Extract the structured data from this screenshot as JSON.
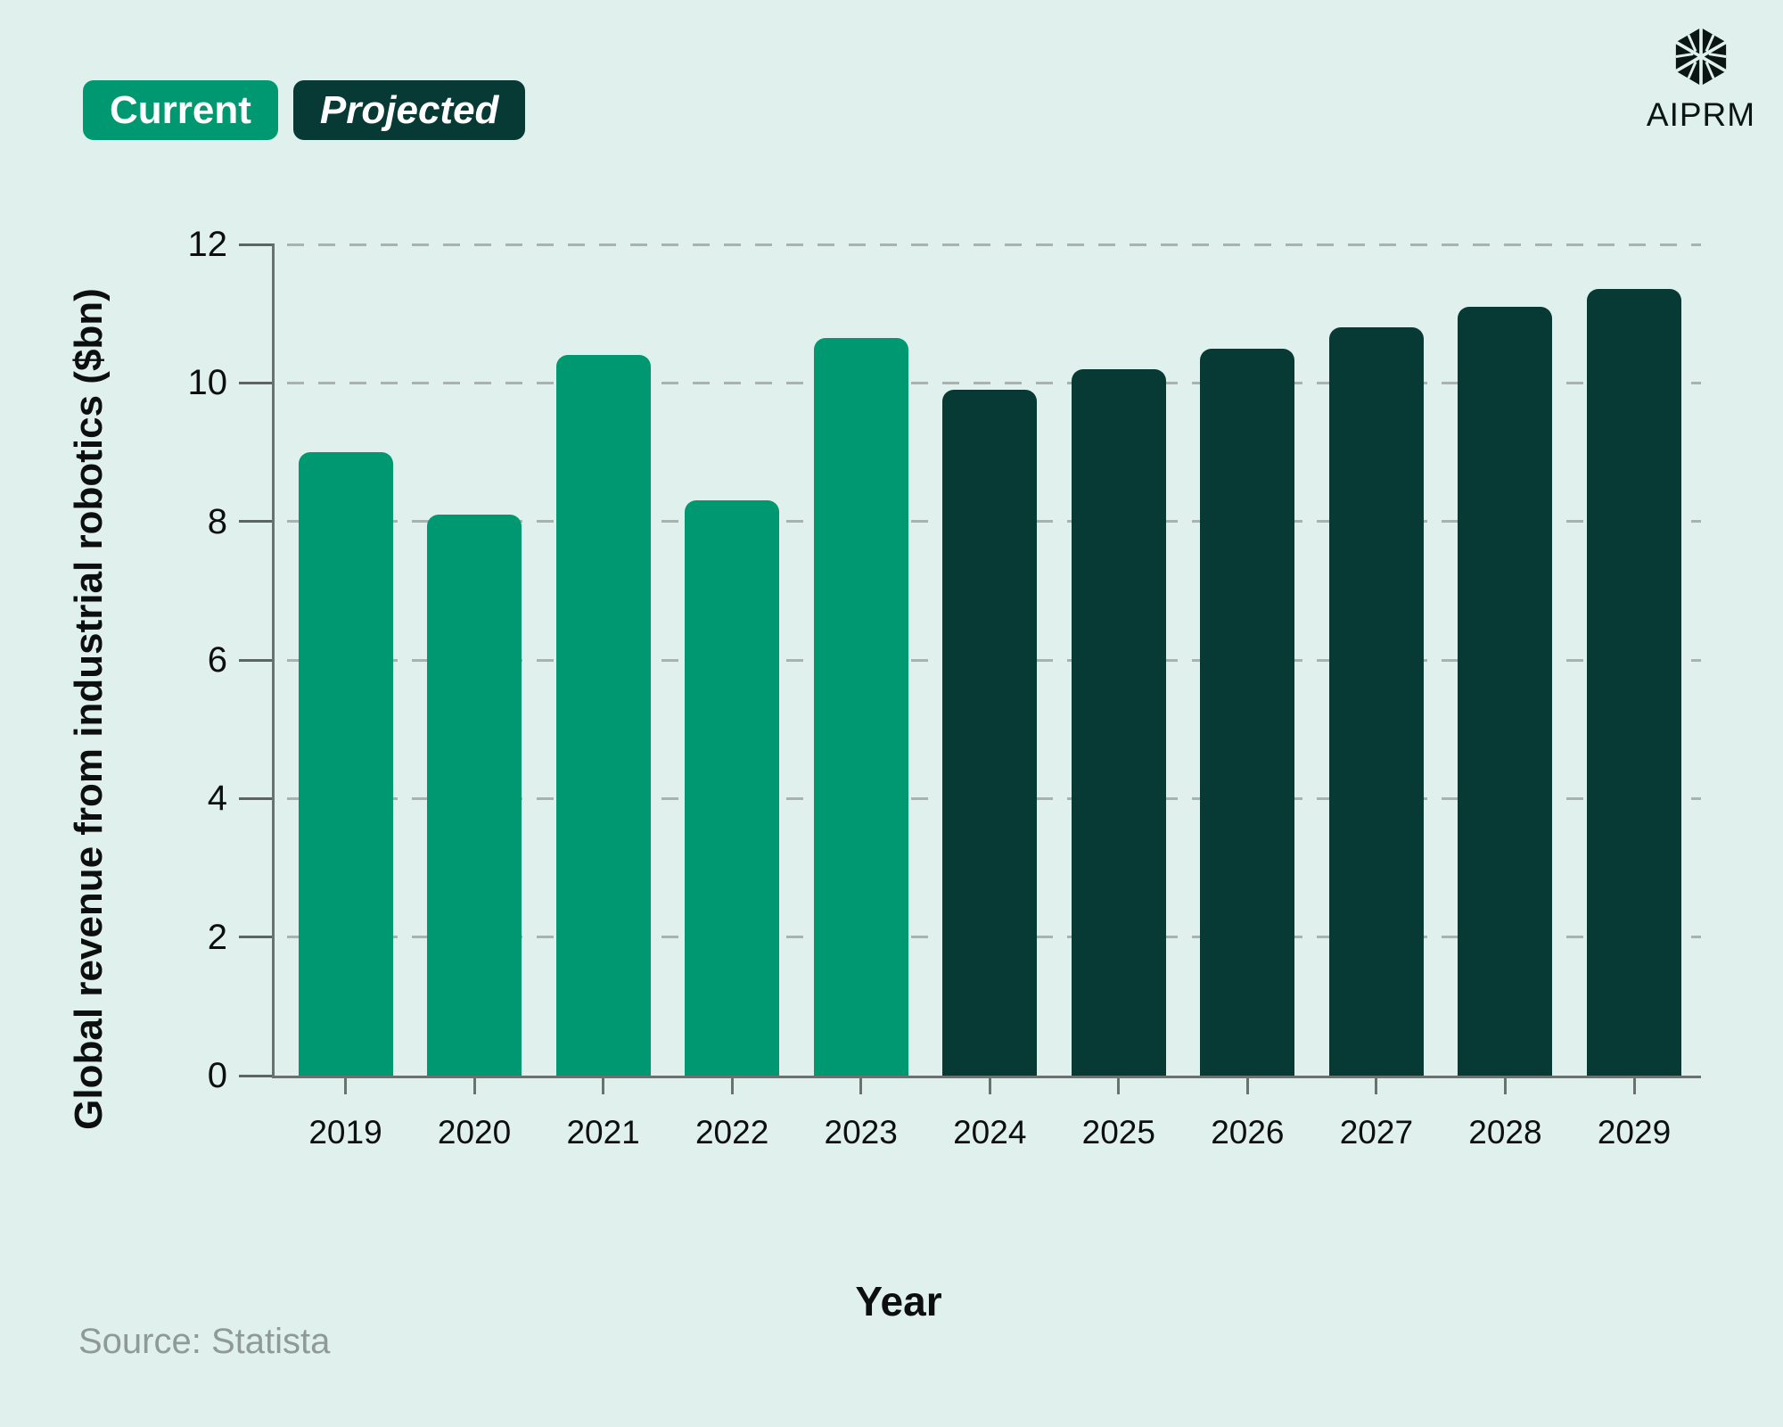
{
  "page": {
    "background_color": "#dff0ed",
    "text_color": "#0c0f0e"
  },
  "legend": {
    "items": [
      {
        "label": "Current",
        "color": "#009870",
        "text_color": "#ffffff",
        "style": "normal"
      },
      {
        "label": "Projected",
        "color": "#073a34",
        "text_color": "#ffffff",
        "style": "italic"
      }
    ]
  },
  "branding": {
    "logo_text": "AIPRM",
    "logo_icon": "faceted-hexagon-icon",
    "logo_color": "#0b1612"
  },
  "source": {
    "text": "Source: Statista"
  },
  "chart_data": {
    "type": "bar",
    "title": "",
    "xlabel": "Year",
    "ylabel": "Global revenue from industrial robotics ($bn)",
    "ylim": [
      0,
      12
    ],
    "yticks": [
      0,
      2,
      4,
      6,
      8,
      10,
      12
    ],
    "grid": "horizontal-dashed",
    "grid_color": "#a8b2af",
    "axis_color": "#6a7270",
    "legend_position": "top-left",
    "categories": [
      2019,
      2020,
      2021,
      2022,
      2023,
      2024,
      2025,
      2026,
      2027,
      2028,
      2029
    ],
    "series": [
      {
        "name": "Current",
        "color": "#009870",
        "categories": [
          2019,
          2020,
          2021,
          2022,
          2023
        ],
        "values": [
          9.0,
          8.1,
          10.4,
          8.3,
          10.65
        ]
      },
      {
        "name": "Projected",
        "color": "#073a34",
        "categories": [
          2024,
          2025,
          2026,
          2027,
          2028,
          2029
        ],
        "values": [
          9.9,
          10.2,
          10.5,
          10.8,
          11.1,
          11.35
        ]
      }
    ]
  }
}
